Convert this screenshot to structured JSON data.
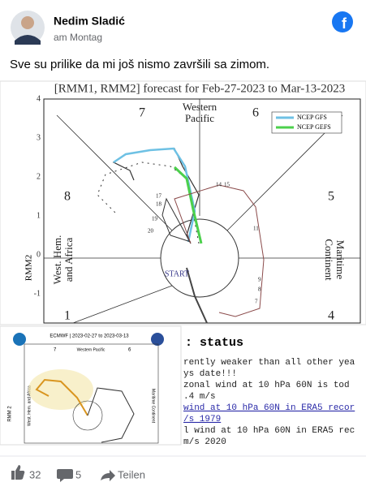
{
  "post": {
    "author": "Nedim Sladić",
    "time": "am Montag",
    "text": "Sve su prilike da mi još nismo završili sa zimom."
  },
  "image": {
    "title": "[RMM1, RMM2] forecast for Feb-27-2023 to Mar-13-2023",
    "legend": [
      "NCEP GFS",
      "NCEP GEFS"
    ],
    "y_axis_label": "RMM2",
    "yticks": [
      "4",
      "3",
      "2",
      "1",
      "0",
      "-1"
    ],
    "phases": [
      "7",
      "6",
      "8",
      "5",
      "1",
      "4"
    ],
    "top_region": [
      "Western",
      "Pacific"
    ],
    "left_region": [
      "West. Hem.",
      "and Africa"
    ],
    "right_region": [
      "Maritime",
      "Continent"
    ],
    "start": "START",
    "day_labels": [
      "14",
      "15",
      "17",
      "18",
      "19",
      "20",
      "11",
      "9",
      "8",
      "7"
    ]
  },
  "inset": {
    "title": "ECMWF | 2023-02-27 to 2023-03-13",
    "top_region": "Western Pacific",
    "phases": [
      "7",
      "6"
    ],
    "y_axis_label": "RMM 2",
    "left_region": "West. Hem. and Africa",
    "right_region": "Maritime Continent"
  },
  "status": {
    "heading": ": status",
    "lines": [
      "rently weaker than all other yea",
      "ys date!!!",
      " zonal wind at 10 hPa 60N is tod",
      ".4 m/s",
      "wind at 10 hPa 60N in ERA5 recor",
      "/s 1979",
      "l wind at 10 hPa 60N in ERA5 rec",
      "m/s 2020"
    ]
  },
  "footer": {
    "likes": "32",
    "comments": "5",
    "share": "Teilen"
  }
}
